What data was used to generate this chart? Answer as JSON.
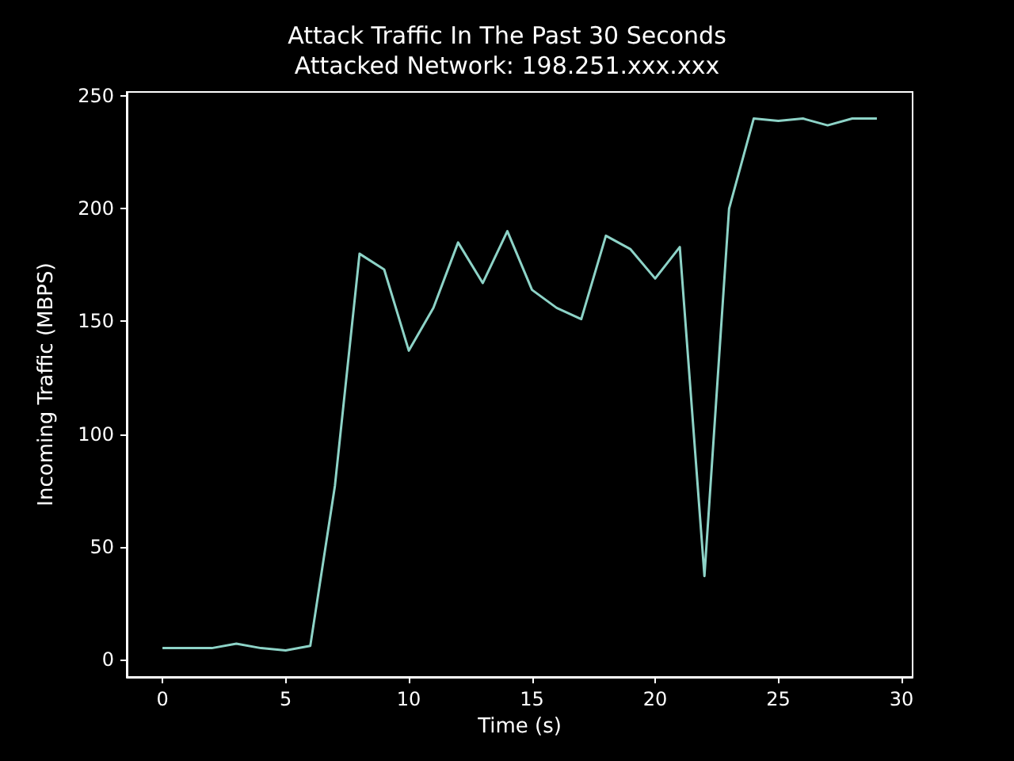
{
  "chart_data": {
    "type": "line",
    "title": "Attack Traffic In The Past 30 Seconds",
    "subtitle": "Attacked Network: 198.251.xxx.xxx",
    "xlabel": "Time (s)",
    "ylabel": "Incoming Traffic (MBPS)",
    "x": [
      0,
      1,
      2,
      3,
      4,
      5,
      6,
      7,
      8,
      9,
      10,
      11,
      12,
      13,
      14,
      15,
      16,
      17,
      18,
      19,
      20,
      21,
      22,
      23,
      24,
      25,
      26,
      27,
      28,
      29
    ],
    "series": [
      {
        "color": "#8dd3c7",
        "values": [
          5,
          5,
          5,
          7,
          5,
          4,
          6,
          77,
          180,
          173,
          137,
          156,
          185,
          167,
          190,
          164,
          156,
          151,
          188,
          182,
          169,
          183,
          37,
          200,
          240,
          239,
          240,
          237,
          240,
          240
        ]
      }
    ],
    "xlim": [
      -1.45,
      30.45
    ],
    "xticks": [
      0,
      5,
      10,
      15,
      20,
      25,
      30
    ],
    "ylim": [
      -7.8,
      251.8
    ],
    "yticks": [
      0,
      50,
      100,
      150,
      200,
      250
    ],
    "grid": false,
    "marker": "none",
    "line_style": "solid"
  }
}
